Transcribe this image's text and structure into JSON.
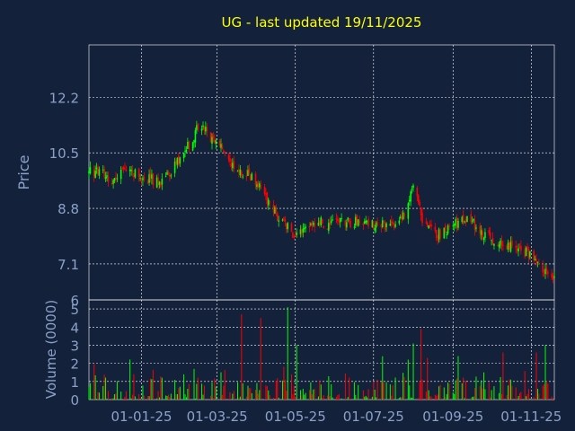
{
  "chart_title": "UG - last updated 19/11/2025",
  "colors": {
    "background": "#13213a",
    "frame": "#ffffff",
    "grid": "#ffffff",
    "title": "#ffff00",
    "axis_text": "#8aa2c8",
    "up": "#00ff00",
    "down": "#ff0000"
  },
  "chart_data": [
    {
      "type": "candlestick",
      "ylabel": "Price",
      "ylim": [
        6.0,
        13.8
      ],
      "yticks": [
        "12.2",
        "10.5",
        "8.8",
        "7.1",
        "6"
      ],
      "ytick_values": [
        12.2,
        10.5,
        8.8,
        7.1,
        6.0
      ],
      "grid": true,
      "anchors": [
        {
          "date": "2024-11-21",
          "close": 9.9
        },
        {
          "date": "2024-12-01",
          "close": 10.0
        },
        {
          "date": "2024-12-10",
          "close": 9.6
        },
        {
          "date": "2024-12-20",
          "close": 10.0
        },
        {
          "date": "2025-01-01",
          "close": 9.8
        },
        {
          "date": "2025-01-15",
          "close": 9.6
        },
        {
          "date": "2025-01-28",
          "close": 10.1
        },
        {
          "date": "2025-02-08",
          "close": 10.8
        },
        {
          "date": "2025-02-16",
          "close": 11.4
        },
        {
          "date": "2025-02-26",
          "close": 10.9
        },
        {
          "date": "2025-03-06",
          "close": 10.6
        },
        {
          "date": "2025-03-15",
          "close": 10.0
        },
        {
          "date": "2025-03-28",
          "close": 9.8
        },
        {
          "date": "2025-04-08",
          "close": 9.1
        },
        {
          "date": "2025-04-20",
          "close": 8.4
        },
        {
          "date": "2025-05-01",
          "close": 8.0
        },
        {
          "date": "2025-05-15",
          "close": 8.4
        },
        {
          "date": "2025-06-01",
          "close": 8.3
        },
        {
          "date": "2025-06-15",
          "close": 8.4
        },
        {
          "date": "2025-07-01",
          "close": 8.3
        },
        {
          "date": "2025-07-20",
          "close": 8.2
        },
        {
          "date": "2025-07-28",
          "close": 9.0
        },
        {
          "date": "2025-08-02",
          "close": 9.6
        },
        {
          "date": "2025-08-08",
          "close": 8.3
        },
        {
          "date": "2025-08-20",
          "close": 8.0
        },
        {
          "date": "2025-09-01",
          "close": 8.3
        },
        {
          "date": "2025-09-12",
          "close": 8.5
        },
        {
          "date": "2025-09-25",
          "close": 8.0
        },
        {
          "date": "2025-10-05",
          "close": 7.8
        },
        {
          "date": "2025-10-20",
          "close": 7.6
        },
        {
          "date": "2025-11-01",
          "close": 7.4
        },
        {
          "date": "2025-11-08",
          "close": 6.9
        },
        {
          "date": "2025-11-19",
          "close": 6.6
        }
      ]
    },
    {
      "type": "bar",
      "ylabel": "Volume (0000)",
      "ylim": [
        0,
        5.5
      ],
      "yticks": [
        "5",
        "4",
        "3",
        "2",
        "1",
        "0"
      ],
      "ytick_values": [
        5,
        4,
        3,
        2,
        1,
        0
      ],
      "grid": true,
      "peaks": [
        {
          "date": "2025-03-20",
          "value": 4.7
        },
        {
          "date": "2025-04-04",
          "value": 4.5
        },
        {
          "date": "2025-04-25",
          "value": 5.1
        },
        {
          "date": "2025-05-02",
          "value": 3.0
        },
        {
          "date": "2025-05-10",
          "value": 3.0
        },
        {
          "date": "2025-08-01",
          "value": 3.1
        },
        {
          "date": "2025-08-07",
          "value": 3.9
        },
        {
          "date": "2025-08-12",
          "value": 2.3
        },
        {
          "date": "2025-09-05",
          "value": 2.4
        },
        {
          "date": "2025-10-10",
          "value": 2.6
        },
        {
          "date": "2025-11-05",
          "value": 2.6
        },
        {
          "date": "2025-11-12",
          "value": 3.0
        }
      ]
    }
  ],
  "x_axis": {
    "start": "2024-11-21",
    "end": "2025-11-19",
    "ticks": [
      {
        "date": "2025-01-01",
        "label": "01-01-25"
      },
      {
        "date": "2025-03-01",
        "label": "01-03-25"
      },
      {
        "date": "2025-05-01",
        "label": "01-05-25"
      },
      {
        "date": "2025-07-01",
        "label": "01-07-25"
      },
      {
        "date": "2025-09-01",
        "label": "01-09-25"
      },
      {
        "date": "2025-11-01",
        "label": "01-11-25"
      }
    ]
  }
}
